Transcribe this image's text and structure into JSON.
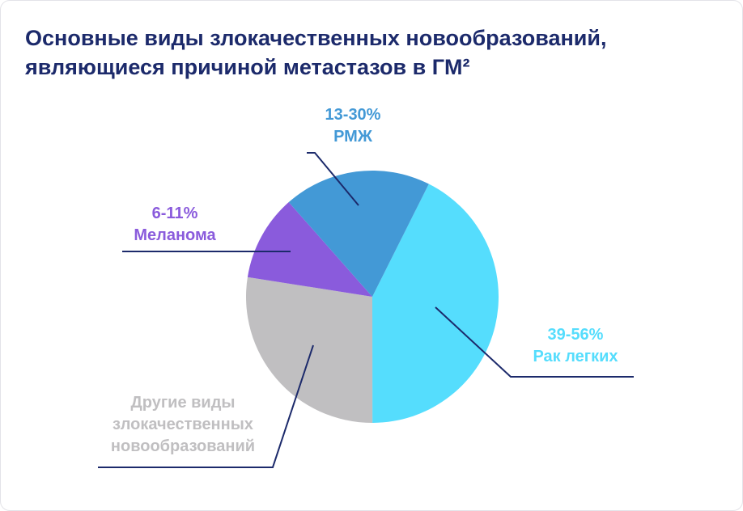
{
  "title_line1": "Основные виды злокачественных новообразований,",
  "title_line2": "являющиеся причиной метастазов в ГМ²",
  "chart_data": {
    "type": "pie",
    "start_angle_deg": 26.6,
    "direction": "clockwise",
    "slices": [
      {
        "key": "lung",
        "range": "39-56%",
        "label": "Рак легких",
        "value": 42.6,
        "color": "#55ddfd"
      },
      {
        "key": "other",
        "range": "",
        "label": "Другие виды злокачественных новообразований",
        "label_lines": [
          "Другие виды",
          "злокачественных",
          "новообразований"
        ],
        "value": 27.5,
        "color": "#c0bfc1"
      },
      {
        "key": "melanoma",
        "range": "6-11%",
        "label": "Меланома",
        "value": 11.0,
        "color": "#8a5bdc"
      },
      {
        "key": "breast",
        "range": "13-30%",
        "label": "РМЖ",
        "value": 18.9,
        "color": "#4399d6"
      }
    ],
    "leader_color": "#1c2a6b"
  }
}
